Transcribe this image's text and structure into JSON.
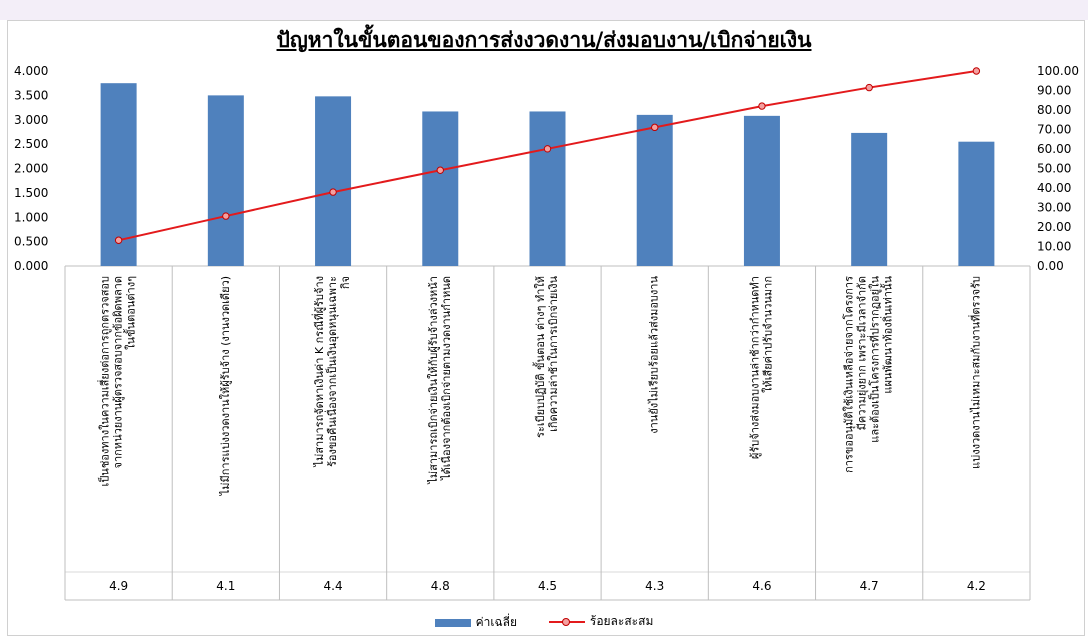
{
  "chart_data": {
    "type": "bar",
    "title": "ปัญหาในขั้นตอนของการส่งงวดงาน/ส่งมอบงาน/เบิกจ่ายเงิน",
    "categories": [
      [
        "เป็นช่องทางในความเสี่ยงต่อการถูกตรวจสอบ",
        "จากหน่วยงานผู้ตรวจสอบจากข้อผิดพลาด",
        "ในขั้นตอนต่างๆ"
      ],
      [
        "ไม่มีการแบ่งงวดงานให้ผู้รับจ้าง (งานงวดเดียว)"
      ],
      [
        "ไม่สามารถจัดหาเงินค่า K กรณีที่ผู้รับจ้าง",
        "ร้องขอคืนเนื่องจากเป็นเงินอุดหนุนเฉพาะ",
        "กิจ"
      ],
      [
        "ไม่สามารถเบิกจ่ายเงินให้กับผู้รับจ้างล่วงหน้า",
        "ได้เนื่องจากต้องเบิกจ่ายตามงวดงานกำหนด"
      ],
      [
        "ระเบียบปฏิบัติ ขั้นตอน ต่างๆ ทำให้",
        "เกิดความล่าช้าในการเบิกจ่ายเงิน"
      ],
      [
        "งานยังไม่เรียบร้อยแล้วส่งมอบงาน"
      ],
      [
        "ผู้รับจ้างส่งมอบงานล่าช้ากว่ากำหนดทำ",
        "ให้เสียค่าปรับจำนวนมาก"
      ],
      [
        "การขออนุมัติใช้เงินเหลือจ่ายจากโครงการ",
        "มีความยุ่งยาก เพราะมีเวลาจำกัด",
        "และต้องเป็นโครงการที่ปรากฏอยู่ใน",
        "แผนพัฒนาท้องถิ่นเท่านั้น"
      ],
      [
        "แบ่งงวดงานไม่เหมาะสมกับงานที่ตรวจรับ"
      ]
    ],
    "codes": [
      "4.9",
      "4.1",
      "4.4",
      "4.8",
      "4.5",
      "4.3",
      "4.6",
      "4.7",
      "4.2"
    ],
    "series": [
      {
        "name": "ค่าเฉลี่ย",
        "type": "bar",
        "axis": "left",
        "values": [
          3.75,
          3.5,
          3.48,
          3.17,
          3.17,
          3.1,
          3.08,
          2.73,
          2.55
        ]
      },
      {
        "name": "ร้อยละสะสม",
        "type": "line",
        "axis": "right",
        "values": [
          13.2,
          25.6,
          37.9,
          49.1,
          60.1,
          71.1,
          82.0,
          91.5,
          100.0
        ]
      }
    ],
    "ylim_left": [
      0,
      4
    ],
    "yticks_left": [
      "0.000",
      "0.500",
      "1.000",
      "1.500",
      "2.000",
      "2.500",
      "3.000",
      "3.500",
      "4.000"
    ],
    "ylim_right": [
      0,
      100
    ],
    "yticks_right": [
      "0.00",
      "10.00",
      "20.00",
      "30.00",
      "40.00",
      "50.00",
      "60.00",
      "70.00",
      "80.00",
      "90.00",
      "100.00"
    ],
    "legend_position": "bottom",
    "colors": {
      "bar": "#4f81bd",
      "line": "#e31a1c"
    }
  }
}
